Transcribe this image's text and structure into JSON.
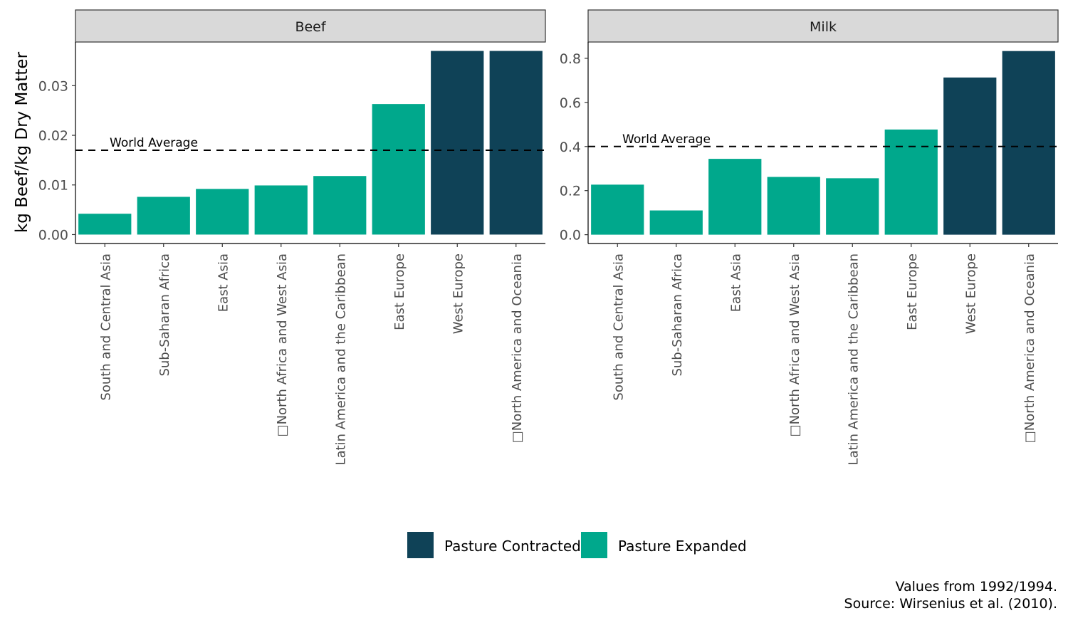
{
  "chart_data": {
    "type": "bar",
    "ylabel": "kg Beef/kg Dry Matter",
    "legend": {
      "position": "bottom",
      "entries": [
        {
          "label": "Pasture Contracted",
          "color": "#0f4257"
        },
        {
          "label": "Pasture Expanded",
          "color": "#00a88c"
        }
      ]
    },
    "caption": [
      "Values from 1992/1994.",
      "Source: Wirsenius et al. (2010)."
    ],
    "panels": [
      {
        "title": "Beef",
        "categories": [
          "South and Central Asia",
          "Sub-Saharan Africa",
          "East Asia",
          "□North Africa and West Asia",
          "Latin America and the Caribbean",
          "East Europe",
          "West Europe",
          "□North America and Oceania"
        ],
        "values": [
          0.0042,
          0.0076,
          0.0092,
          0.0099,
          0.0118,
          0.0263,
          0.037,
          0.037
        ],
        "groups": [
          "Pasture Expanded",
          "Pasture Expanded",
          "Pasture Expanded",
          "Pasture Expanded",
          "Pasture Expanded",
          "Pasture Expanded",
          "Pasture Contracted",
          "Pasture Contracted"
        ],
        "ylim": [
          -0.0018,
          0.0388
        ],
        "yticks": [
          0.0,
          0.01,
          0.02,
          0.03
        ],
        "ytick_labels": [
          "0.00",
          "0.01",
          "0.02",
          "0.03"
        ],
        "reference": {
          "label": "World Average",
          "value": 0.017
        }
      },
      {
        "title": "Milk",
        "categories": [
          "South and Central Asia",
          "Sub-Saharan Africa",
          "East Asia",
          "□North Africa and West Asia",
          "Latin America and the Caribbean",
          "East Europe",
          "West Europe",
          "□North America and Oceania"
        ],
        "values": [
          0.227,
          0.11,
          0.344,
          0.262,
          0.256,
          0.477,
          0.713,
          0.833
        ],
        "groups": [
          "Pasture Expanded",
          "Pasture Expanded",
          "Pasture Expanded",
          "Pasture Expanded",
          "Pasture Expanded",
          "Pasture Expanded",
          "Pasture Contracted",
          "Pasture Contracted"
        ],
        "ylim": [
          -0.04,
          0.874
        ],
        "yticks": [
          0.0,
          0.2,
          0.4,
          0.6,
          0.8
        ],
        "ytick_labels": [
          "0.0",
          "0.2",
          "0.4",
          "0.6",
          "0.8"
        ],
        "reference": {
          "label": "World Average",
          "value": 0.4
        }
      }
    ]
  }
}
